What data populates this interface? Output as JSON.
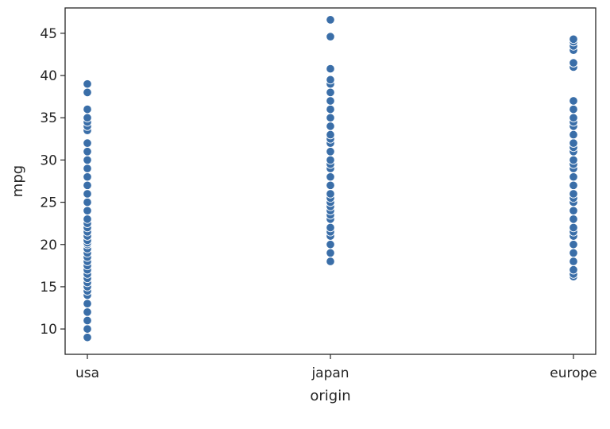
{
  "chart_data": {
    "type": "scatter",
    "xlabel": "origin",
    "ylabel": "mpg",
    "categories": [
      "usa",
      "japan",
      "europe"
    ],
    "ylim": [
      7,
      48
    ],
    "y_ticks": [
      10,
      15,
      20,
      25,
      30,
      35,
      40,
      45
    ],
    "grid": false,
    "point_color": "#3a6ea8",
    "series": [
      {
        "category": "usa",
        "values": [
          9,
          10,
          11,
          12,
          13,
          14,
          14.5,
          15,
          15.5,
          16,
          16.5,
          17,
          17.5,
          18,
          18.5,
          19,
          19.5,
          20,
          20.2,
          20.5,
          21,
          21.5,
          22,
          22.5,
          23,
          24,
          25,
          26,
          27,
          28,
          29,
          30,
          31,
          32,
          33.5,
          34,
          34.5,
          35,
          36,
          38,
          39
        ]
      },
      {
        "category": "japan",
        "values": [
          18,
          19,
          20,
          21,
          21.5,
          22,
          23,
          23.5,
          24,
          24.5,
          25,
          25.5,
          26,
          27,
          28,
          29,
          29.5,
          30,
          31,
          32,
          32.5,
          33,
          34,
          35,
          36,
          37,
          38,
          39,
          39.5,
          40.8,
          44.6,
          46.6
        ]
      },
      {
        "category": "europe",
        "values": [
          16.2,
          16.5,
          17,
          18,
          19,
          20,
          21,
          21.5,
          22,
          23,
          24,
          25,
          25.5,
          26,
          27,
          28,
          29,
          29.5,
          30,
          31,
          31.5,
          32,
          33,
          34,
          34.5,
          35,
          36,
          37,
          41,
          41.5,
          43,
          43.5,
          44,
          44.3
        ]
      }
    ]
  }
}
